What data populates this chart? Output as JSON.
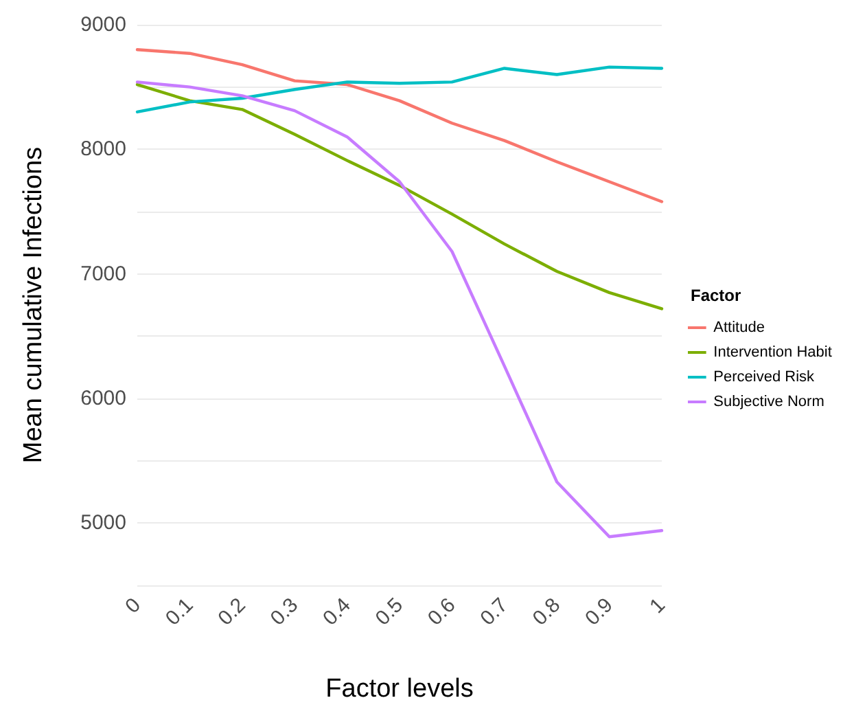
{
  "chart_data": {
    "type": "line",
    "xlabel": "Factor levels",
    "ylabel": "Mean cumulative Infections",
    "legend_title": "Factor",
    "categories": [
      "0",
      "0.1",
      "0.2",
      "0.3",
      "0.4",
      "0.5",
      "0.6",
      "0.7",
      "0.8",
      "0.9",
      "1"
    ],
    "series": [
      {
        "name": "Attitude",
        "color": "#f8766d",
        "values": [
          8800,
          8770,
          8680,
          8550,
          8520,
          8390,
          8210,
          8070,
          7900,
          7740,
          7580
        ]
      },
      {
        "name": "Intervention Habit",
        "color": "#7cae00",
        "values": [
          8520,
          8390,
          8320,
          8120,
          7910,
          7710,
          7480,
          7240,
          7020,
          6850,
          6720
        ]
      },
      {
        "name": "Perceived Risk",
        "color": "#00bfc4",
        "values": [
          8300,
          8380,
          8410,
          8480,
          8540,
          8530,
          8540,
          8650,
          8600,
          8660,
          8650
        ]
      },
      {
        "name": "Subjective Norm",
        "color": "#c77cff",
        "values": [
          8540,
          8500,
          8430,
          8310,
          8100,
          7740,
          7180,
          6260,
          5330,
          4890,
          4940
        ]
      }
    ],
    "ylim": [
      4500,
      9000
    ],
    "yticks": [
      {
        "value": 4500,
        "label": null
      },
      5000,
      {
        "value": 5500,
        "label": null
      },
      6000,
      {
        "value": 6500,
        "label": null
      },
      7000,
      {
        "value": 7500,
        "label": null
      },
      8000,
      {
        "value": 8500,
        "label": null
      },
      9000
    ],
    "grid": "y",
    "legend": "right",
    "marker": "none",
    "line_style": "solid"
  }
}
